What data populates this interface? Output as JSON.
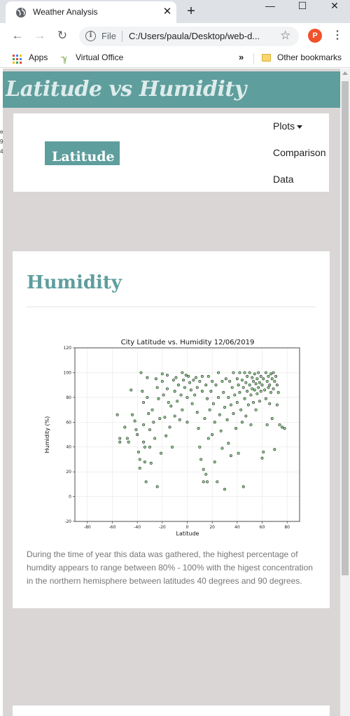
{
  "browser": {
    "tab_title": "Weather Analysis",
    "tab_close": "✕",
    "new_tab": "+",
    "minimize": "—",
    "maximize": "☐",
    "close": "✕",
    "url_scheme_label": "File",
    "url": "C:/Users/paula/Desktop/web-d...",
    "profile_initial": "P",
    "bookmarks": {
      "apps_label": "Apps",
      "virtual_office_label": "Virtual Office",
      "overflow_label": "»",
      "other_bookmarks_label": "Other bookmarks"
    }
  },
  "page": {
    "header_title": "Latitude vs Humidity",
    "brand_label": "Latitude",
    "nav": {
      "plots_label": "Plots",
      "comparison_label": "Comparison",
      "data_label": "Data"
    },
    "cut_text": [
      "e",
      "9",
      "4"
    ],
    "card": {
      "title": "Humidity",
      "description": "During the time of year this data was gathered, the highest percentage of humdity appears to range between 80% - 100% with the higest concentration in the northern hemisphere between latitudes 40 degrees and 90 degrees."
    }
  },
  "chart_data": {
    "type": "scatter",
    "title": "City Latitude vs. Humidity 12/06/2019",
    "xlabel": "Latitude",
    "ylabel": "Humidity (%)",
    "xlim": [
      -90,
      90
    ],
    "ylim": [
      -20,
      120
    ],
    "xticks": [
      -80,
      -60,
      -40,
      -20,
      0,
      20,
      40,
      60,
      80
    ],
    "yticks": [
      -20,
      0,
      20,
      40,
      60,
      80,
      100,
      120
    ],
    "grid": true,
    "colors": {
      "point_fill": "#8fd18e",
      "point_edge": "#1c1c1c"
    },
    "points": [
      [
        -56,
        66
      ],
      [
        -54,
        47
      ],
      [
        -54,
        44
      ],
      [
        -50,
        56
      ],
      [
        -48,
        47
      ],
      [
        -47,
        44
      ],
      [
        -45,
        86
      ],
      [
        -44,
        66
      ],
      [
        -42,
        61
      ],
      [
        -41,
        54
      ],
      [
        -40,
        50
      ],
      [
        -39,
        36
      ],
      [
        -38,
        30
      ],
      [
        -38,
        23
      ],
      [
        -37,
        100
      ],
      [
        -36,
        85
      ],
      [
        -35,
        76
      ],
      [
        -35,
        58
      ],
      [
        -35,
        44
      ],
      [
        -34,
        40
      ],
      [
        -34,
        28
      ],
      [
        -33,
        12
      ],
      [
        -32,
        96
      ],
      [
        -32,
        80
      ],
      [
        -31,
        67
      ],
      [
        -30,
        54
      ],
      [
        -30,
        40
      ],
      [
        -29,
        27
      ],
      [
        -28,
        70
      ],
      [
        -27,
        60
      ],
      [
        -26,
        47
      ],
      [
        -25,
        95
      ],
      [
        -24,
        88
      ],
      [
        -24,
        8
      ],
      [
        -23,
        79
      ],
      [
        -22,
        63
      ],
      [
        -21,
        35
      ],
      [
        -20,
        99
      ],
      [
        -20,
        93
      ],
      [
        -19,
        82
      ],
      [
        -18,
        64
      ],
      [
        -17,
        49
      ],
      [
        -16,
        98
      ],
      [
        -16,
        87
      ],
      [
        -15,
        76
      ],
      [
        -14,
        56
      ],
      [
        -13,
        73
      ],
      [
        -12,
        40
      ],
      [
        -11,
        94
      ],
      [
        -10,
        85
      ],
      [
        -10,
        65
      ],
      [
        -9,
        96
      ],
      [
        -8,
        77
      ],
      [
        -7,
        90
      ],
      [
        -6,
        62
      ],
      [
        -5,
        82
      ],
      [
        -4,
        100
      ],
      [
        -4,
        70
      ],
      [
        -3,
        94
      ],
      [
        -2,
        88
      ],
      [
        -1,
        98
      ],
      [
        0,
        80
      ],
      [
        0,
        60
      ],
      [
        1,
        97
      ],
      [
        2,
        92
      ],
      [
        3,
        86
      ],
      [
        4,
        75
      ],
      [
        5,
        94
      ],
      [
        6,
        82
      ],
      [
        7,
        96
      ],
      [
        8,
        88
      ],
      [
        8,
        68
      ],
      [
        9,
        55
      ],
      [
        10,
        93
      ],
      [
        10,
        40
      ],
      [
        11,
        30
      ],
      [
        12,
        97
      ],
      [
        12,
        85
      ],
      [
        13,
        22
      ],
      [
        13,
        12
      ],
      [
        14,
        63
      ],
      [
        15,
        90
      ],
      [
        15,
        18
      ],
      [
        16,
        79
      ],
      [
        16,
        12
      ],
      [
        17,
        97
      ],
      [
        17,
        47
      ],
      [
        18,
        70
      ],
      [
        19,
        85
      ],
      [
        20,
        93
      ],
      [
        20,
        50
      ],
      [
        21,
        75
      ],
      [
        22,
        60
      ],
      [
        22,
        28
      ],
      [
        23,
        90
      ],
      [
        24,
        12
      ],
      [
        25,
        100
      ],
      [
        25,
        80
      ],
      [
        26,
        66
      ],
      [
        27,
        53
      ],
      [
        28,
        93
      ],
      [
        28,
        39
      ],
      [
        29,
        84
      ],
      [
        30,
        72
      ],
      [
        30,
        6
      ],
      [
        31,
        95
      ],
      [
        32,
        62
      ],
      [
        33,
        80
      ],
      [
        33,
        43
      ],
      [
        34,
        93
      ],
      [
        35,
        74
      ],
      [
        35,
        33
      ],
      [
        36,
        88
      ],
      [
        37,
        100
      ],
      [
        37,
        67
      ],
      [
        38,
        82
      ],
      [
        39,
        55
      ],
      [
        40,
        95
      ],
      [
        40,
        76
      ],
      [
        41,
        90
      ],
      [
        41,
        35
      ],
      [
        42,
        100
      ],
      [
        42,
        84
      ],
      [
        43,
        70
      ],
      [
        44,
        94
      ],
      [
        44,
        60
      ],
      [
        45,
        88
      ],
      [
        45,
        8
      ],
      [
        46,
        100
      ],
      [
        46,
        79
      ],
      [
        47,
        92
      ],
      [
        47,
        65
      ],
      [
        48,
        97
      ],
      [
        48,
        85
      ],
      [
        49,
        74
      ],
      [
        50,
        100
      ],
      [
        50,
        90
      ],
      [
        51,
        82
      ],
      [
        51,
        58
      ],
      [
        52,
        96
      ],
      [
        52,
        87
      ],
      [
        53,
        93
      ],
      [
        53,
        76
      ],
      [
        54,
        99
      ],
      [
        54,
        86
      ],
      [
        55,
        91
      ],
      [
        55,
        70
      ],
      [
        56,
        95
      ],
      [
        56,
        83
      ],
      [
        57,
        100
      ],
      [
        57,
        88
      ],
      [
        58,
        92
      ],
      [
        58,
        77
      ],
      [
        59,
        97
      ],
      [
        59,
        85
      ],
      [
        60,
        90
      ],
      [
        60,
        31
      ],
      [
        61,
        95
      ],
      [
        61,
        36
      ],
      [
        62,
        86
      ],
      [
        63,
        100
      ],
      [
        63,
        79
      ],
      [
        64,
        93
      ],
      [
        64,
        58
      ],
      [
        65,
        97
      ],
      [
        65,
        88
      ],
      [
        66,
        90
      ],
      [
        66,
        75
      ],
      [
        67,
        99
      ],
      [
        67,
        84
      ],
      [
        68,
        95
      ],
      [
        68,
        63
      ],
      [
        69,
        100
      ],
      [
        69,
        87
      ],
      [
        70,
        93
      ],
      [
        70,
        38
      ],
      [
        71,
        97
      ],
      [
        72,
        90
      ],
      [
        72,
        74
      ],
      [
        73,
        84
      ],
      [
        74,
        58
      ],
      [
        76,
        56
      ],
      [
        78,
        55
      ]
    ]
  }
}
